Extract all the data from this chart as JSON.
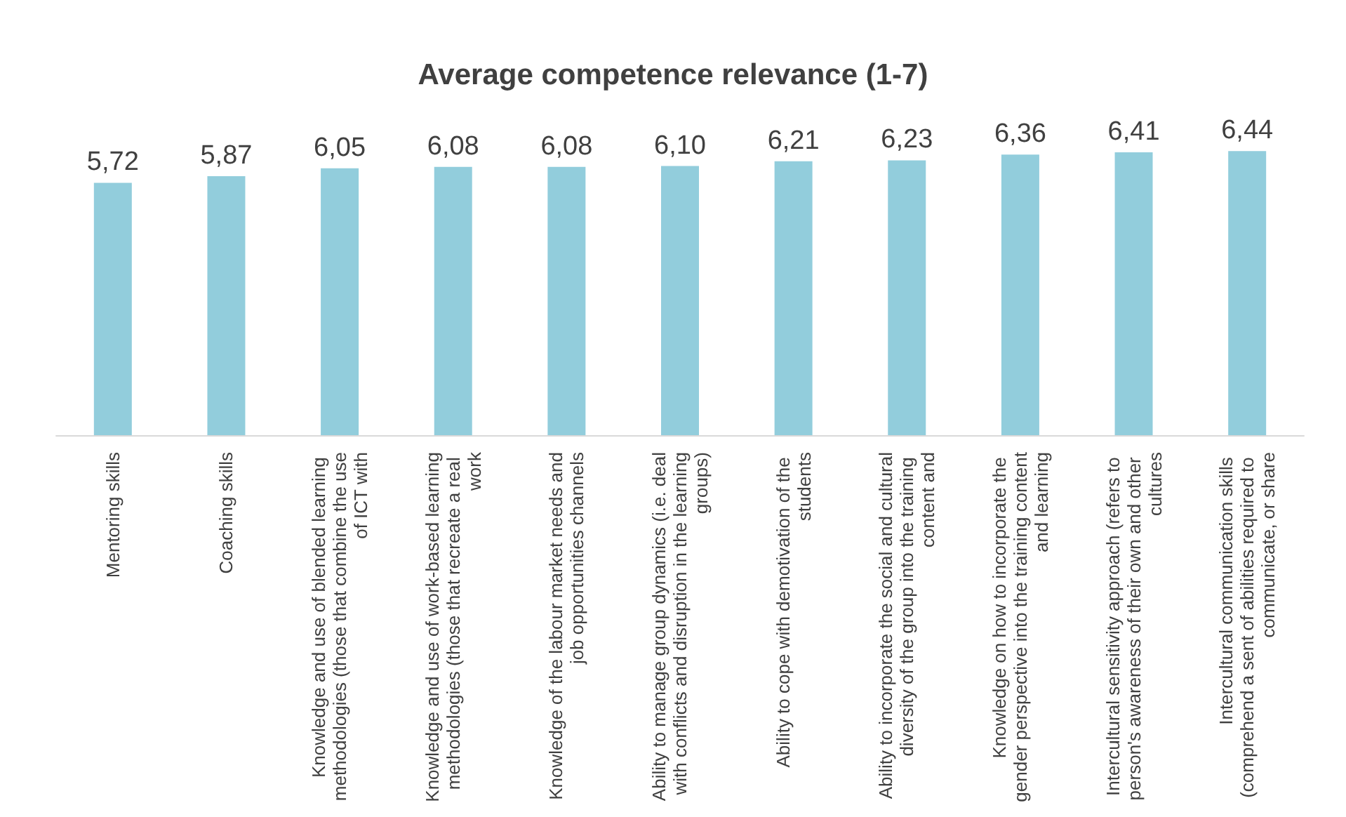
{
  "chart_data": {
    "type": "bar",
    "title": "Average competence relevance (1-7)",
    "categories": [
      "Mentoring skills",
      "Coaching skills",
      "Knowledge and use of blended learning methodologies (those that combine the use of ICT with",
      "Knowledge and use of work-based learning methodologies (those that recreate a real work",
      "Knowledge of the labour market needs and job opportunities channels",
      "Ability to manage group dynamics (i.e. deal with conflicts and disruption in the learning groups)",
      "Ability to cope with demotivation of the students",
      "Ability to incorporate the social and cultural diversity of the group into the training content and",
      "Knowledge on how to incorporate the gender perspective into the training content and learning",
      "Intercultural sensitivity approach (refers to person's awareness of their own and other cultures",
      "Intercultural communication skills (comprehend a sent of abilities required to communicate, or share"
    ],
    "values": [
      5.72,
      5.87,
      6.05,
      6.08,
      6.08,
      6.1,
      6.21,
      6.23,
      6.36,
      6.41,
      6.44
    ],
    "value_labels": [
      "5,72",
      "5,87",
      "6,05",
      "6,08",
      "6,08",
      "6,10",
      "6,21",
      "6,23",
      "6,36",
      "6,41",
      "6,44"
    ],
    "color": "#92cddc",
    "grid": false
  }
}
